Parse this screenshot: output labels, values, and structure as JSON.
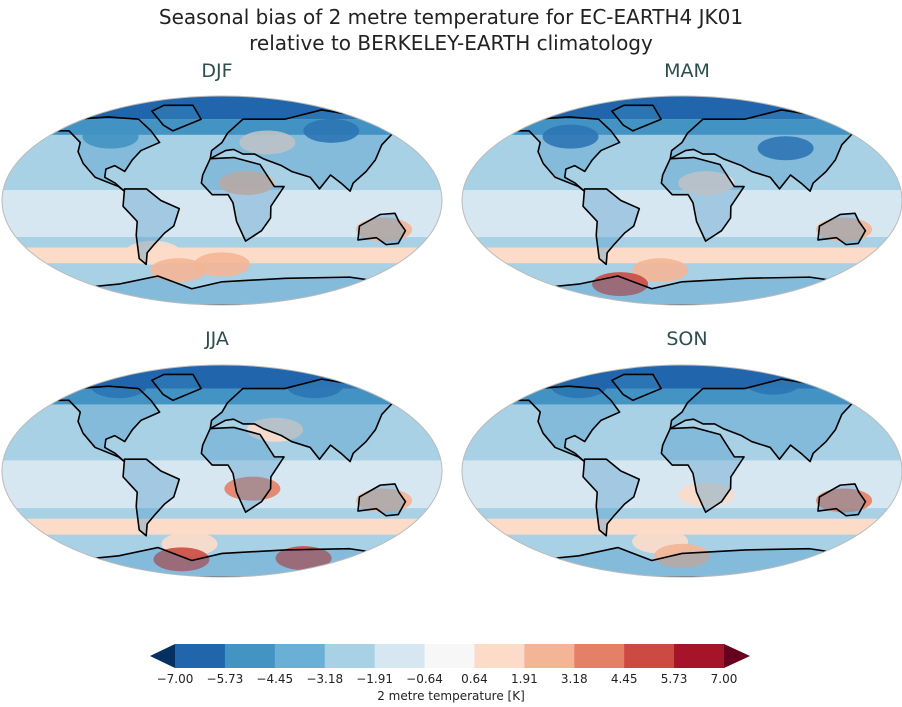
{
  "title_line1": "Seasonal bias of 2 metre temperature for EC-EARTH4 JK01",
  "title_line2": "relative to BERKELEY-EARTH climatology",
  "panels": [
    {
      "label": "DJF"
    },
    {
      "label": "MAM"
    },
    {
      "label": "JJA"
    },
    {
      "label": "SON"
    }
  ],
  "colorbar": {
    "label": "2 metre temperature [K]",
    "ticks": [
      "−7.00",
      "−5.73",
      "−4.45",
      "−3.18",
      "−1.91",
      "−0.64",
      "0.64",
      "1.91",
      "3.18",
      "4.45",
      "5.73",
      "7.00"
    ],
    "under_color": "#053061",
    "over_color": "#67001f",
    "colors": [
      "#2166ac",
      "#4393c3",
      "#6aafd6",
      "#a8d1e6",
      "#d6e7f1",
      "#f7f7f7",
      "#fcdcc9",
      "#f4b596",
      "#e48066",
      "#cc4a42",
      "#a51429"
    ]
  }
}
